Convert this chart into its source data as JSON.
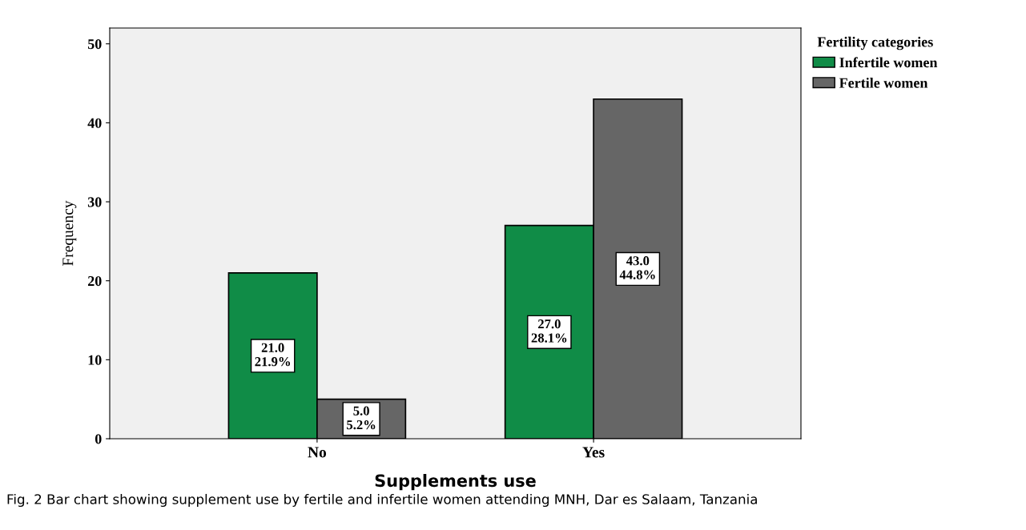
{
  "chart_data": {
    "type": "bar",
    "xlabel": "Supplements use",
    "ylabel": "Frequency",
    "legend_title": "Fertility categories",
    "categories": [
      "No",
      "Yes"
    ],
    "series": [
      {
        "name": "Infertile women",
        "color": "#108c47",
        "values": [
          21.0,
          27.0
        ],
        "value_labels": [
          "21.0\n21.9%",
          "27.0\n28.1%"
        ]
      },
      {
        "name": "Fertile women",
        "color": "#666666",
        "values": [
          5.0,
          43.0
        ],
        "value_labels": [
          "5.0\n5.2%",
          "43.0\n44.8%"
        ]
      }
    ],
    "ylim": [
      0,
      52
    ],
    "yticks": [
      0,
      10,
      20,
      30,
      40,
      50
    ],
    "grid": false,
    "legend": "top right",
    "annotations": [
      "Fig. 2 Bar chart showing supplement use by fertile and infertile women attending MNH, Dar es Salaam, Tanzania"
    ]
  }
}
